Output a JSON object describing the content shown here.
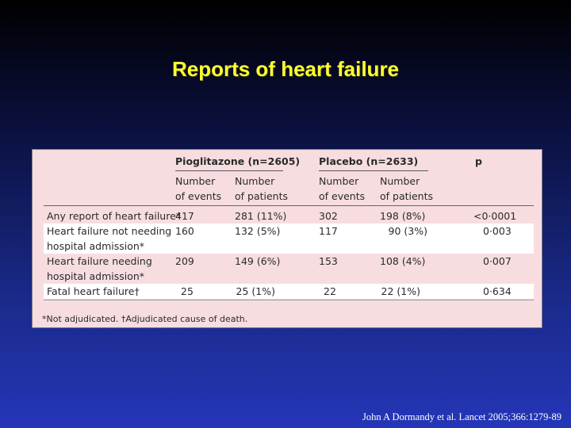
{
  "slide": {
    "title": "Reports of heart failure",
    "citation": "John A Dormandy et al. Lancet 2005;366:1279-89"
  },
  "table": {
    "group_pio": "Pioglitazone (n=2605)",
    "group_placebo": "Placebo (n=2633)",
    "col_p": "p",
    "sub_events_1": "Number",
    "sub_events_2": "of events",
    "sub_patients_1": "Number",
    "sub_patients_2": "of patients",
    "rows": [
      {
        "label1": "Any report of heart failure*",
        "label2": "",
        "pio_events": "417",
        "pio_patients": "281 (11%)",
        "pl_events": "302",
        "pl_patients": "198 (8%)",
        "p": "<0·0001"
      },
      {
        "label1": "Heart failure not needing",
        "label2": "hospital admission*",
        "pio_events": "160",
        "pio_patients": "132 (5%)",
        "pl_events": "117",
        "pl_patients": "90 (3%)",
        "p": "0·003"
      },
      {
        "label1": "Heart failure needing",
        "label2": "hospital admission*",
        "pio_events": "209",
        "pio_patients": "149 (6%)",
        "pl_events": "153",
        "pl_patients": "108 (4%)",
        "p": "0·007"
      },
      {
        "label1": "Fatal heart failure†",
        "label2": "",
        "pio_events": "25",
        "pio_patients": "25 (1%)",
        "pl_events": "22",
        "pl_patients": "22 (1%)",
        "p": "0·634"
      }
    ],
    "footnote": "*Not adjudicated. †Adjudicated cause of death."
  }
}
